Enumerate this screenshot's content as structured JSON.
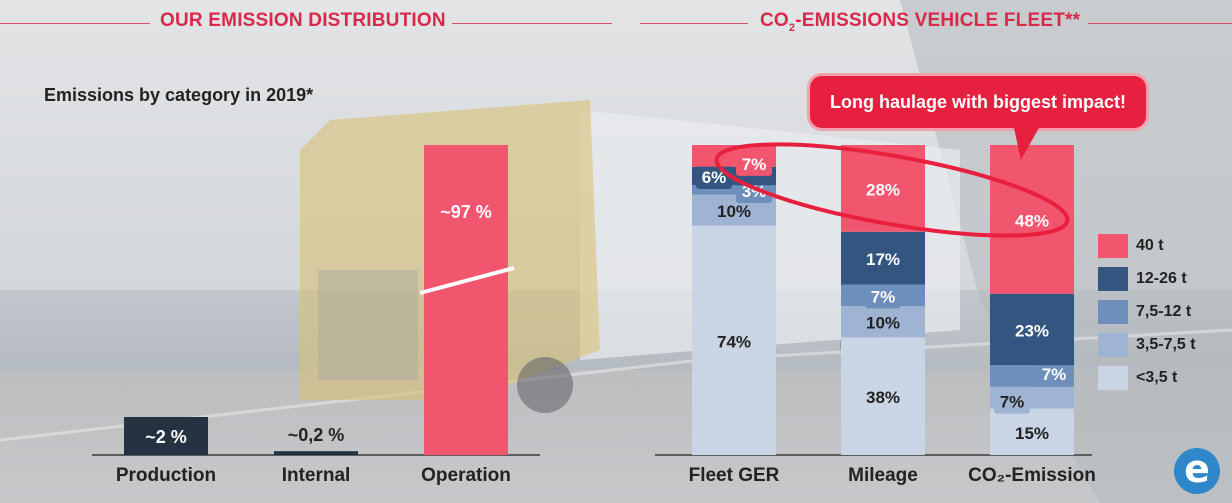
{
  "left_title": "OUR EMISSION DISTRIBUTION",
  "right_title_prefix": "CO",
  "right_title_sub": "2",
  "right_title_suffix": "-EMISSIONS VEHICLE FLEET**",
  "subtitle": "Emissions by category in 2019*",
  "callout": "Long haulage with biggest impact!",
  "logo_letter": "e",
  "colors": {
    "title_red": "#d8294a",
    "bar_red": "#f2566e",
    "dark_navy": "#243242",
    "seg_40t": "#f2566e",
    "seg_12_26t": "#34557f",
    "seg_7_5_12t": "#6e8fbc",
    "seg_3_5_7_5t": "#9fb4d2",
    "seg_lt_3_5t": "#c9d4e4"
  },
  "chart_data": [
    {
      "type": "bar",
      "categories": [
        "Production",
        "Internal",
        "Operation"
      ],
      "values": [
        2,
        0.2,
        97
      ],
      "data_labels": [
        "~2 %",
        "~0,2 %",
        "~97 %"
      ],
      "title": "Emissions by category in 2019*",
      "ylim": [
        0,
        100
      ],
      "axis_break": true
    },
    {
      "type": "bar",
      "stacked": true,
      "percent": true,
      "categories": [
        "Fleet GER",
        "Mileage",
        "CO₂-Emission"
      ],
      "series": [
        {
          "name": "<3,5 t",
          "values": [
            74,
            38,
            15
          ],
          "labels": [
            "74%",
            "38%",
            "15%"
          ]
        },
        {
          "name": "3,5-7,5 t",
          "values": [
            10,
            10,
            7
          ],
          "labels": [
            "10%",
            "10%",
            "7%"
          ]
        },
        {
          "name": "7,5-12 t",
          "values": [
            3,
            7,
            7
          ],
          "labels": [
            "3%",
            "7%",
            "7%"
          ]
        },
        {
          "name": "12-26 t",
          "values": [
            6,
            17,
            23
          ],
          "labels": [
            "6%",
            "17%",
            "23%"
          ]
        },
        {
          "name": "40 t",
          "values": [
            7,
            28,
            48
          ],
          "labels": [
            "7%",
            "28%",
            "48%"
          ]
        }
      ],
      "legend_position": "right",
      "legend": [
        "40 t",
        "12-26 t",
        "7,5-12 t",
        "3,5-7,5 t",
        "<3,5 t"
      ]
    }
  ]
}
